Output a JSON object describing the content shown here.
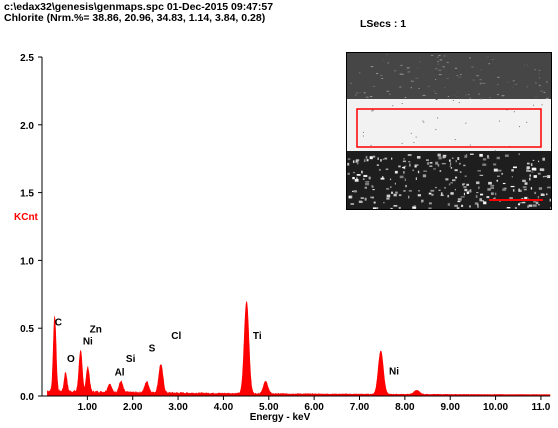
{
  "header": {
    "path_line": "c:\\edax32\\genesis\\genmaps.spc  01-Dec-2015 09:47:57",
    "sample_line": "Chlorite (Nrm.%= 38.86, 20.96, 34.83, 1.14, 3.84, 0.28)",
    "lsecs": "LSecs : 1"
  },
  "colors": {
    "spectrum": "#ff0000",
    "axis": "#000000",
    "ylabel": "#ff0000",
    "roi": "#ff0000"
  },
  "chart_data": {
    "type": "area",
    "ylabel": "KCnt",
    "xlabel": "Energy - keV",
    "xlim": [
      0,
      11.2
    ],
    "ylim": [
      0,
      2.5
    ],
    "xticks": [
      1.0,
      2.0,
      3.0,
      4.0,
      5.0,
      6.0,
      7.0,
      8.0,
      9.0,
      10.0,
      11.0
    ],
    "xtick_labels": [
      "1.00",
      "2.00",
      "3.00",
      "4.00",
      "5.00",
      "6.00",
      "7.00",
      "8.00",
      "9.00",
      "10.00",
      "11.0"
    ],
    "yticks": [
      0.0,
      0.5,
      1.0,
      1.5,
      2.0,
      2.5
    ],
    "ytick_labels": [
      "0.0",
      "0.5",
      "1.0",
      "1.5",
      "2.0",
      "2.5"
    ],
    "background": 0.03,
    "peaks": [
      {
        "x": 0.28,
        "y": 0.55,
        "w": 0.03
      },
      {
        "x": 0.52,
        "y": 0.14,
        "w": 0.03
      },
      {
        "x": 0.85,
        "y": 0.3,
        "w": 0.035
      },
      {
        "x": 1.01,
        "y": 0.18,
        "w": 0.035
      },
      {
        "x": 1.49,
        "y": 0.06,
        "w": 0.04
      },
      {
        "x": 1.74,
        "y": 0.08,
        "w": 0.04
      },
      {
        "x": 2.31,
        "y": 0.08,
        "w": 0.045
      },
      {
        "x": 2.62,
        "y": 0.21,
        "w": 0.045
      },
      {
        "x": 4.51,
        "y": 0.68,
        "w": 0.05
      },
      {
        "x": 4.93,
        "y": 0.09,
        "w": 0.05
      },
      {
        "x": 7.47,
        "y": 0.32,
        "w": 0.055
      },
      {
        "x": 8.26,
        "y": 0.03,
        "w": 0.06
      }
    ],
    "element_labels": [
      {
        "text": "C",
        "x": 0.28,
        "y": 0.52
      },
      {
        "text": "O",
        "x": 0.55,
        "y": 0.25
      },
      {
        "text": "Ni",
        "x": 0.9,
        "y": 0.38
      },
      {
        "text": "Zn",
        "x": 1.05,
        "y": 0.47
      },
      {
        "text": "Al",
        "x": 1.6,
        "y": 0.15
      },
      {
        "text": "Si",
        "x": 1.85,
        "y": 0.25
      },
      {
        "text": "S",
        "x": 2.35,
        "y": 0.33
      },
      {
        "text": "Cl",
        "x": 2.85,
        "y": 0.42
      },
      {
        "text": "Ti",
        "x": 4.65,
        "y": 0.42
      },
      {
        "text": "Ni",
        "x": 7.65,
        "y": 0.16
      }
    ]
  }
}
